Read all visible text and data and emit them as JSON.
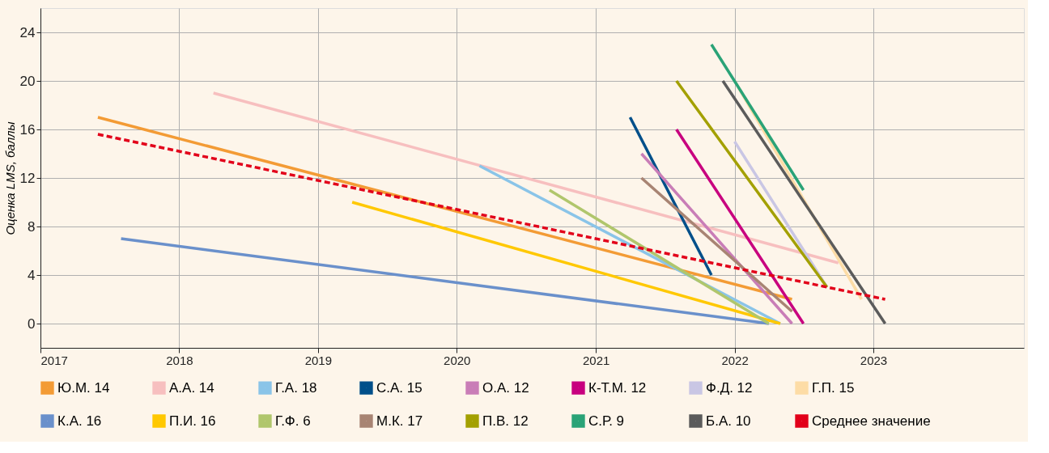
{
  "chart_data": {
    "type": "line",
    "ylabel": "Оценка LMS, баллы",
    "xlim": [
      "2017-01-01",
      "2024-02-01"
    ],
    "xticks": [
      "2017",
      "2018",
      "2019",
      "2020",
      "2021",
      "2022",
      "2023"
    ],
    "ylim": [
      -2,
      26
    ],
    "yticks": [
      0,
      4,
      8,
      12,
      16,
      20,
      24
    ],
    "grid": true,
    "legend": "bottom",
    "marker": "none",
    "line_style": "solid",
    "series": [
      {
        "name": "Ю.М. 14",
        "color": "#f39b35",
        "x": [
          "2017-06",
          "2022-06"
        ],
        "values": [
          17,
          2
        ]
      },
      {
        "name": "А.А. 14",
        "color": "#f7bfbf",
        "x": [
          "2018-04",
          "2022-10"
        ],
        "values": [
          19,
          5
        ]
      },
      {
        "name": "Г.А. 18",
        "color": "#8ac4e8",
        "x": [
          "2020-03",
          "2022-05"
        ],
        "values": [
          13,
          0
        ]
      },
      {
        "name": "С.А. 15",
        "color": "#004f8a",
        "x": [
          "2021-04",
          "2021-11"
        ],
        "values": [
          17,
          4
        ]
      },
      {
        "name": "О.А. 12",
        "color": "#c97db7",
        "x": [
          "2021-05",
          "2022-06"
        ],
        "values": [
          14,
          0
        ]
      },
      {
        "name": "К-Т.М. 12",
        "color": "#c8007f",
        "x": [
          "2021-08",
          "2022-07"
        ],
        "values": [
          16,
          0
        ]
      },
      {
        "name": "Ф.Д. 12",
        "color": "#c9c6e4",
        "x": [
          "2022-01",
          "2022-09"
        ],
        "values": [
          15,
          3
        ]
      },
      {
        "name": "Г.П. 15",
        "color": "#fddca6",
        "x": [
          "2022-01",
          "2022-12"
        ],
        "values": [
          20,
          2
        ]
      },
      {
        "name": "К.А. 16",
        "color": "#6a90cb",
        "x": [
          "2017-08",
          "2022-04"
        ],
        "values": [
          7,
          0
        ]
      },
      {
        "name": "П.И. 16",
        "color": "#ffc800",
        "x": [
          "2019-04",
          "2022-05"
        ],
        "values": [
          10,
          0
        ]
      },
      {
        "name": "Г.Ф. 6",
        "color": "#b0c66c",
        "x": [
          "2020-09",
          "2022-04"
        ],
        "values": [
          11,
          0
        ]
      },
      {
        "name": "М.К. 17",
        "color": "#a88473",
        "x": [
          "2021-05",
          "2022-06"
        ],
        "values": [
          12,
          1
        ]
      },
      {
        "name": "П.В. 12",
        "color": "#a3a000",
        "x": [
          "2021-08",
          "2022-09"
        ],
        "values": [
          20,
          3
        ]
      },
      {
        "name": "С.Р. 9",
        "color": "#2aa377",
        "x": [
          "2021-11",
          "2022-07"
        ],
        "values": [
          23,
          11
        ]
      },
      {
        "name": "Б.А. 10",
        "color": "#5b5b5b",
        "x": [
          "2021-12",
          "2023-02"
        ],
        "values": [
          20,
          0
        ]
      },
      {
        "name": "Среднее значение",
        "color": "#e2001a",
        "line_style": "dashed",
        "x": [
          "2017-06",
          "2023-02"
        ],
        "values": [
          15.6,
          2
        ]
      }
    ]
  }
}
